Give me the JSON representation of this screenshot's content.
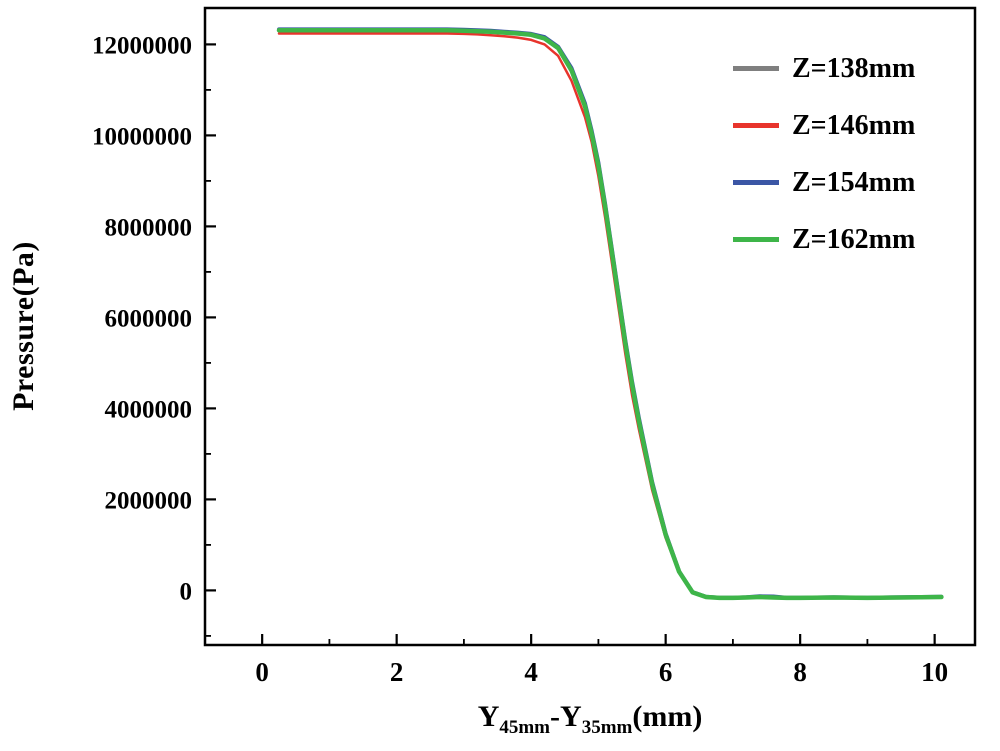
{
  "labels": {
    "ylabel": "Pressure(Pa)",
    "x_part_y1": "Y",
    "x_sub1": "45mm",
    "x_dash": "-",
    "x_part_y2": "Y",
    "x_sub2": "35mm",
    "x_unit": "(mm)"
  },
  "chart_data": {
    "type": "line",
    "title": "",
    "xlabel": "Y45mm-Y35mm(mm)",
    "ylabel": "Pressure(Pa)",
    "xlim": [
      -0.85,
      10.6
    ],
    "ylim": [
      -1200000,
      12800000
    ],
    "x_ticks": [
      0,
      2,
      4,
      6,
      8,
      10
    ],
    "x_minor_ticks": [
      1,
      3,
      5,
      7,
      9
    ],
    "y_ticks": [
      0,
      2000000,
      4000000,
      6000000,
      8000000,
      10000000,
      12000000
    ],
    "y_minor_ticks": [
      -1000000,
      1000000,
      3000000,
      5000000,
      7000000,
      9000000,
      11000000
    ],
    "grid": false,
    "legend_position": "top-right",
    "background_color": "#ffffff",
    "axis_color": "#000000",
    "x": [
      0.25,
      0.5,
      0.75,
      1.0,
      1.25,
      1.5,
      1.75,
      2.0,
      2.25,
      2.5,
      2.75,
      3.0,
      3.2,
      3.4,
      3.6,
      3.8,
      4.0,
      4.2,
      4.4,
      4.6,
      4.8,
      4.9,
      5.0,
      5.1,
      5.2,
      5.3,
      5.4,
      5.5,
      5.6,
      5.8,
      6.0,
      6.2,
      6.4,
      6.6,
      6.8,
      7.0,
      7.2,
      7.4,
      7.6,
      7.8,
      8.0,
      8.5,
      9.0,
      9.5,
      10.1
    ],
    "series": [
      {
        "name": "Z=138mm",
        "color": "#7f7f7f",
        "width": 3,
        "values": [
          12300000,
          12300000,
          12300000,
          12300000,
          12300000,
          12300000,
          12300000,
          12300000,
          12300000,
          12300000,
          12300000,
          12290000,
          12280000,
          12270000,
          12250000,
          12230000,
          12200000,
          12120000,
          11900000,
          11400000,
          10600000,
          10000000,
          9300000,
          8400000,
          7400000,
          6400000,
          5400000,
          4500000,
          3700000,
          2300000,
          1200000,
          400000,
          -50000,
          -150000,
          -170000,
          -170000,
          -160000,
          -150000,
          -160000,
          -170000,
          -170000,
          -160000,
          -170000,
          -160000,
          -150000
        ]
      },
      {
        "name": "Z=146mm",
        "color": "#e8342c",
        "width": 2.5,
        "values": [
          12240000,
          12240000,
          12240000,
          12240000,
          12240000,
          12240000,
          12240000,
          12240000,
          12240000,
          12240000,
          12240000,
          12230000,
          12220000,
          12200000,
          12180000,
          12150000,
          12100000,
          12000000,
          11750000,
          11200000,
          10400000,
          9850000,
          9100000,
          8200000,
          7200000,
          6200000,
          5200000,
          4300000,
          3550000,
          2200000,
          1150000,
          380000,
          -60000,
          -160000,
          -175000,
          -175000,
          -165000,
          -155000,
          -165000,
          -175000,
          -175000,
          -165000,
          -175000,
          -165000,
          -155000
        ]
      },
      {
        "name": "Z=154mm",
        "color": "#3b56a5",
        "width": 4,
        "values": [
          12330000,
          12330000,
          12330000,
          12330000,
          12330000,
          12330000,
          12330000,
          12330000,
          12330000,
          12330000,
          12330000,
          12320000,
          12310000,
          12300000,
          12280000,
          12260000,
          12230000,
          12160000,
          11950000,
          11480000,
          10700000,
          10100000,
          9400000,
          8500000,
          7500000,
          6500000,
          5500000,
          4600000,
          3800000,
          2380000,
          1250000,
          420000,
          -40000,
          -140000,
          -160000,
          -160000,
          -150000,
          -130000,
          -135000,
          -160000,
          -160000,
          -150000,
          -160000,
          -150000,
          -140000
        ]
      },
      {
        "name": "Z=162mm",
        "color": "#3eb549",
        "width": 4.5,
        "values": [
          12310000,
          12310000,
          12310000,
          12310000,
          12310000,
          12310000,
          12310000,
          12310000,
          12310000,
          12310000,
          12310000,
          12300000,
          12290000,
          12280000,
          12260000,
          12240000,
          12210000,
          12130000,
          11920000,
          11430000,
          10640000,
          10030000,
          9330000,
          8430000,
          7430000,
          6430000,
          5430000,
          4530000,
          3730000,
          2330000,
          1220000,
          410000,
          -45000,
          -145000,
          -165000,
          -165000,
          -155000,
          -145000,
          -155000,
          -165000,
          -165000,
          -155000,
          -165000,
          -155000,
          -145000
        ]
      }
    ]
  }
}
